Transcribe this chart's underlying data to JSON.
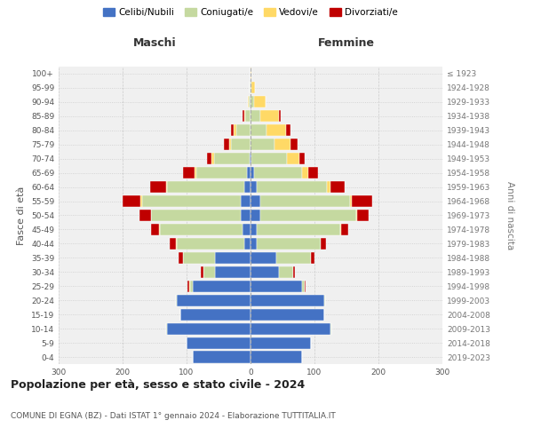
{
  "age_groups": [
    "0-4",
    "5-9",
    "10-14",
    "15-19",
    "20-24",
    "25-29",
    "30-34",
    "35-39",
    "40-44",
    "45-49",
    "50-54",
    "55-59",
    "60-64",
    "65-69",
    "70-74",
    "75-79",
    "80-84",
    "85-89",
    "90-94",
    "95-99",
    "100+"
  ],
  "birth_years": [
    "2019-2023",
    "2014-2018",
    "2009-2013",
    "2004-2008",
    "1999-2003",
    "1994-1998",
    "1989-1993",
    "1984-1988",
    "1979-1983",
    "1974-1978",
    "1969-1973",
    "1964-1968",
    "1959-1963",
    "1954-1958",
    "1949-1953",
    "1944-1948",
    "1939-1943",
    "1934-1938",
    "1929-1933",
    "1924-1928",
    "≤ 1923"
  ],
  "males": {
    "celibi": [
      90,
      100,
      130,
      110,
      115,
      90,
      55,
      55,
      10,
      12,
      15,
      15,
      10,
      5,
      2,
      0,
      0,
      0,
      0,
      0,
      0
    ],
    "coniugati": [
      0,
      0,
      2,
      0,
      2,
      5,
      18,
      50,
      105,
      130,
      140,
      155,
      120,
      80,
      55,
      30,
      22,
      8,
      3,
      1,
      0
    ],
    "vedovi": [
      0,
      0,
      0,
      0,
      0,
      1,
      0,
      0,
      1,
      1,
      1,
      2,
      2,
      3,
      4,
      3,
      4,
      2,
      1,
      0,
      0
    ],
    "divorziati": [
      0,
      0,
      0,
      0,
      0,
      2,
      5,
      8,
      10,
      12,
      18,
      28,
      25,
      18,
      7,
      8,
      5,
      2,
      0,
      0,
      0
    ]
  },
  "females": {
    "nubili": [
      80,
      95,
      125,
      115,
      115,
      80,
      45,
      40,
      10,
      10,
      15,
      15,
      10,
      5,
      2,
      0,
      0,
      0,
      0,
      0,
      0
    ],
    "coniugate": [
      0,
      0,
      2,
      0,
      2,
      5,
      22,
      55,
      100,
      130,
      150,
      140,
      110,
      75,
      55,
      38,
      25,
      15,
      5,
      2,
      0
    ],
    "vedove": [
      0,
      0,
      0,
      0,
      0,
      0,
      0,
      0,
      0,
      1,
      2,
      3,
      5,
      10,
      20,
      25,
      30,
      30,
      18,
      5,
      1
    ],
    "divorziate": [
      0,
      0,
      0,
      0,
      0,
      1,
      2,
      5,
      8,
      12,
      18,
      32,
      22,
      15,
      8,
      10,
      8,
      2,
      0,
      0,
      0
    ]
  },
  "colors": {
    "celibi": "#4472C4",
    "coniugati": "#c5d9a0",
    "vedovi": "#ffd966",
    "divorziati": "#c00000"
  },
  "legend_labels": [
    "Celibi/Nubili",
    "Coniugati/e",
    "Vedovi/e",
    "Divorziati/e"
  ],
  "title": "Popolazione per età, sesso e stato civile - 2024",
  "subtitle": "COMUNE DI EGNA (BZ) - Dati ISTAT 1° gennaio 2024 - Elaborazione TUTTITALIA.IT",
  "xlabel_left": "Maschi",
  "xlabel_right": "Femmine",
  "ylabel_left": "Fasce di età",
  "ylabel_right": "Anni di nascita",
  "xlim": 300,
  "background_color": "#ffffff",
  "plot_bg_color": "#f0f0f0"
}
